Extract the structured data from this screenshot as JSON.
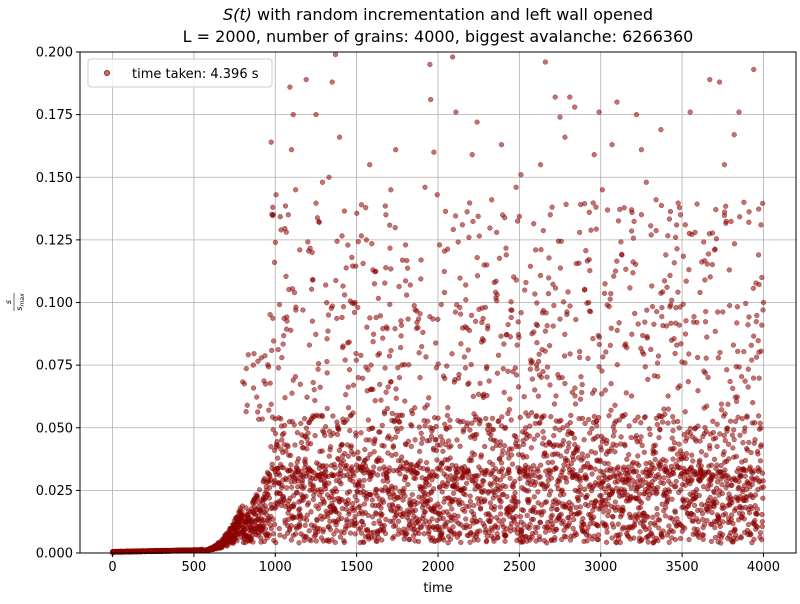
{
  "chart_data": {
    "type": "scatter",
    "title_italic": "S(t)",
    "title_rest": " with random incrementation and left wall opened",
    "subtitle": "L = 2000, number of grains: 4000, biggest avalanche: 6266360",
    "xlabel": "time",
    "ylabel": "s / s_max",
    "xlim": [
      -200,
      4200
    ],
    "ylim": [
      0,
      0.2
    ],
    "x_ticks": [
      0,
      500,
      1000,
      1500,
      2000,
      2500,
      3000,
      3500,
      4000
    ],
    "x_tick_labels": [
      "0",
      "500",
      "1000",
      "1500",
      "2000",
      "2500",
      "3000",
      "3500",
      "4000"
    ],
    "y_ticks": [
      0,
      0.025,
      0.05,
      0.075,
      0.1,
      0.125,
      0.15,
      0.175,
      0.2
    ],
    "y_tick_labels": [
      "0.000",
      "0.025",
      "0.050",
      "0.075",
      "0.100",
      "0.125",
      "0.150",
      "0.175",
      "0.200"
    ],
    "grid": true,
    "legend": {
      "placement": "top-left",
      "label": "time taken: 4.396 s"
    },
    "marker_color": "#8b0000",
    "marker_alpha": 0.55,
    "n_points": 4000,
    "points": [
      [
        0,
        0
      ],
      [
        50,
        0.0003
      ],
      [
        100,
        0.0004
      ],
      [
        150,
        0.0005
      ],
      [
        200,
        0.0005
      ],
      [
        250,
        0.0006
      ],
      [
        300,
        0.0006
      ],
      [
        350,
        0.0007
      ],
      [
        400,
        0.0008
      ],
      [
        450,
        0.0009
      ],
      [
        500,
        0.001
      ],
      [
        550,
        0.0015
      ],
      [
        600,
        0.002
      ],
      [
        650,
        0.003
      ],
      [
        700,
        0.005
      ],
      [
        720,
        0.006
      ],
      [
        740,
        0.008
      ],
      [
        760,
        0.009
      ],
      [
        780,
        0.012
      ],
      [
        800,
        0.015
      ],
      [
        820,
        0.018
      ],
      [
        840,
        0.014
      ],
      [
        860,
        0.012
      ],
      [
        880,
        0.011
      ],
      [
        900,
        0.02
      ],
      [
        920,
        0.016
      ],
      [
        940,
        0.022
      ],
      [
        960,
        0.057
      ],
      [
        975,
        0.164
      ],
      [
        985,
        0.138
      ],
      [
        995,
        0.116
      ],
      [
        1005,
        0.143
      ],
      [
        1020,
        0.028
      ],
      [
        1040,
        0.078
      ],
      [
        1060,
        0.062
      ],
      [
        1080,
        0.135
      ],
      [
        1090,
        0.186
      ],
      [
        1100,
        0.161
      ],
      [
        1110,
        0.175
      ],
      [
        1125,
        0.145
      ],
      [
        1150,
        0.121
      ],
      [
        1170,
        0.097
      ],
      [
        1190,
        0.189
      ],
      [
        1210,
        0.083
      ],
      [
        1230,
        0.109
      ],
      [
        1250,
        0.175
      ],
      [
        1270,
        0.132
      ],
      [
        1290,
        0.148
      ],
      [
        1310,
        0.107
      ],
      [
        1330,
        0.15
      ],
      [
        1350,
        0.188
      ],
      [
        1370,
        0.199
      ],
      [
        1395,
        0.166
      ],
      [
        1410,
        0.094
      ],
      [
        1430,
        0.077
      ],
      [
        1450,
        0.058
      ],
      [
        1470,
        0.118
      ],
      [
        1490,
        0.1
      ],
      [
        1510,
        0.07
      ],
      [
        1530,
        0.139
      ],
      [
        1560,
        0.125
      ],
      [
        1580,
        0.155
      ],
      [
        1600,
        0.113
      ],
      [
        1620,
        0.094
      ],
      [
        1650,
        0.061
      ],
      [
        1680,
        0.135
      ],
      [
        1710,
        0.145
      ],
      [
        1740,
        0.161
      ],
      [
        1770,
        0.082
      ],
      [
        1800,
        0.123
      ],
      [
        1830,
        0.107
      ],
      [
        1860,
        0.097
      ],
      [
        1890,
        0.07
      ],
      [
        1920,
        0.146
      ],
      [
        1950,
        0.195
      ],
      [
        1955,
        0.181
      ],
      [
        1975,
        0.16
      ],
      [
        1995,
        0.143
      ],
      [
        2010,
        0.123
      ],
      [
        2040,
        0.104
      ],
      [
        2060,
        0.058
      ],
      [
        2090,
        0.198
      ],
      [
        2110,
        0.176
      ],
      [
        2150,
        0.131
      ],
      [
        2170,
        0.107
      ],
      [
        2190,
        0.126
      ],
      [
        2210,
        0.159
      ],
      [
        2240,
        0.172
      ],
      [
        2270,
        0.092
      ],
      [
        2300,
        0.115
      ],
      [
        2330,
        0.141
      ],
      [
        2360,
        0.128
      ],
      [
        2390,
        0.163
      ],
      [
        2420,
        0.119
      ],
      [
        2450,
        0.094
      ],
      [
        2480,
        0.146
      ],
      [
        2510,
        0.151
      ],
      [
        2540,
        0.108
      ],
      [
        2570,
        0.077
      ],
      [
        2600,
        0.121
      ],
      [
        2630,
        0.155
      ],
      [
        2660,
        0.196
      ],
      [
        2690,
        0.135
      ],
      [
        2720,
        0.182
      ],
      [
        2750,
        0.174
      ],
      [
        2780,
        0.166
      ],
      [
        2810,
        0.182
      ],
      [
        2840,
        0.178
      ],
      [
        2870,
        0.128
      ],
      [
        2900,
        0.105
      ],
      [
        2930,
        0.136
      ],
      [
        2960,
        0.159
      ],
      [
        2990,
        0.176
      ],
      [
        3010,
        0.145
      ],
      [
        3040,
        0.099
      ],
      [
        3070,
        0.163
      ],
      [
        3100,
        0.18
      ],
      [
        3130,
        0.119
      ],
      [
        3160,
        0.082
      ],
      [
        3190,
        0.137
      ],
      [
        3220,
        0.175
      ],
      [
        3250,
        0.161
      ],
      [
        3280,
        0.148
      ],
      [
        3310,
        0.127
      ],
      [
        3340,
        0.141
      ],
      [
        3370,
        0.169
      ],
      [
        3400,
        0.119
      ],
      [
        3430,
        0.099
      ],
      [
        3460,
        0.126
      ],
      [
        3490,
        0.135
      ],
      [
        3520,
        0.131
      ],
      [
        3550,
        0.176
      ],
      [
        3580,
        0.128
      ],
      [
        3610,
        0.104
      ],
      [
        3640,
        0.109
      ],
      [
        3670,
        0.189
      ],
      [
        3700,
        0.121
      ],
      [
        3730,
        0.188
      ],
      [
        3760,
        0.155
      ],
      [
        3790,
        0.113
      ],
      [
        3820,
        0.167
      ],
      [
        3850,
        0.176
      ],
      [
        3880,
        0.14
      ],
      [
        3910,
        0.132
      ],
      [
        3940,
        0.193
      ],
      [
        3970,
        0.119
      ],
      [
        3990,
        0.11
      ],
      [
        4000,
        0.1
      ]
    ]
  }
}
